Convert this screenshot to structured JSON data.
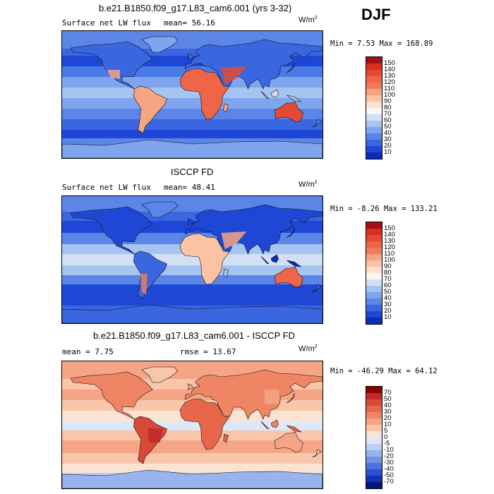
{
  "season": "DJF",
  "panels": [
    {
      "title": "b.e21.B1850.f09_g17.L83_cam6.001 (yrs 3-32)",
      "left_label": "Surface net LW flux",
      "right_label": "mean=  56.16",
      "units": "W/m",
      "units_sup": "2",
      "min_max": "Min =   7.53 Max = 168.89",
      "colorbar_ticks": [
        "150",
        "140",
        "130",
        "120",
        "110",
        "100",
        "90",
        "80",
        "70",
        "60",
        "50",
        "40",
        "30",
        "20",
        "10"
      ],
      "colorbar_colors": [
        "#a50f15",
        "#d7301f",
        "#e34a33",
        "#ef6548",
        "#f07a5a",
        "#f4a582",
        "#fbc2a4",
        "#fde0d0",
        "#f7f7f7",
        "#d1e0f5",
        "#a6c4f2",
        "#7ea5ee",
        "#5b86e8",
        "#3a66e0",
        "#1f47d6",
        "#0b2cb8"
      ]
    },
    {
      "title": "ISCCP FD",
      "left_label": "Surface net LW flux",
      "right_label": "mean=  48.41",
      "units": "W/m",
      "units_sup": "2",
      "min_max": "Min =  -8.26 Max = 133.21",
      "colorbar_ticks": [
        "150",
        "140",
        "130",
        "120",
        "110",
        "100",
        "90",
        "80",
        "70",
        "60",
        "50",
        "40",
        "30",
        "20",
        "10"
      ],
      "colorbar_colors": [
        "#a50f15",
        "#d7301f",
        "#e34a33",
        "#ef6548",
        "#f07a5a",
        "#f4a582",
        "#fbc2a4",
        "#fde0d0",
        "#f7f7f7",
        "#d1e0f5",
        "#a6c4f2",
        "#7ea5ee",
        "#5b86e8",
        "#3a66e0",
        "#1f47d6",
        "#0b2cb8"
      ]
    },
    {
      "title": "b.e21.B1850.f09_g17.L83_cam6.001 - ISCCP FD",
      "left_label": "mean =   7.75",
      "right_label": "rmse =  13.67",
      "units": "W/m",
      "units_sup": "2",
      "min_max": "Min = -46.29 Max =  64.12",
      "colorbar_ticks": [
        "70",
        "50",
        "40",
        "30",
        "20",
        "10",
        "5",
        "0",
        "-5",
        "-10",
        "-20",
        "-30",
        "-40",
        "-50",
        "-70"
      ],
      "colorbar_colors": [
        "#8b0000",
        "#c0282b",
        "#d94a36",
        "#e8674a",
        "#f08565",
        "#f4a585",
        "#f8c6aa",
        "#fbe3d3",
        "#dce7f8",
        "#bcd0f4",
        "#97b4ef",
        "#7294e8",
        "#4c72e0",
        "#2c51d2",
        "#1234b8",
        "#05147a"
      ]
    }
  ]
}
